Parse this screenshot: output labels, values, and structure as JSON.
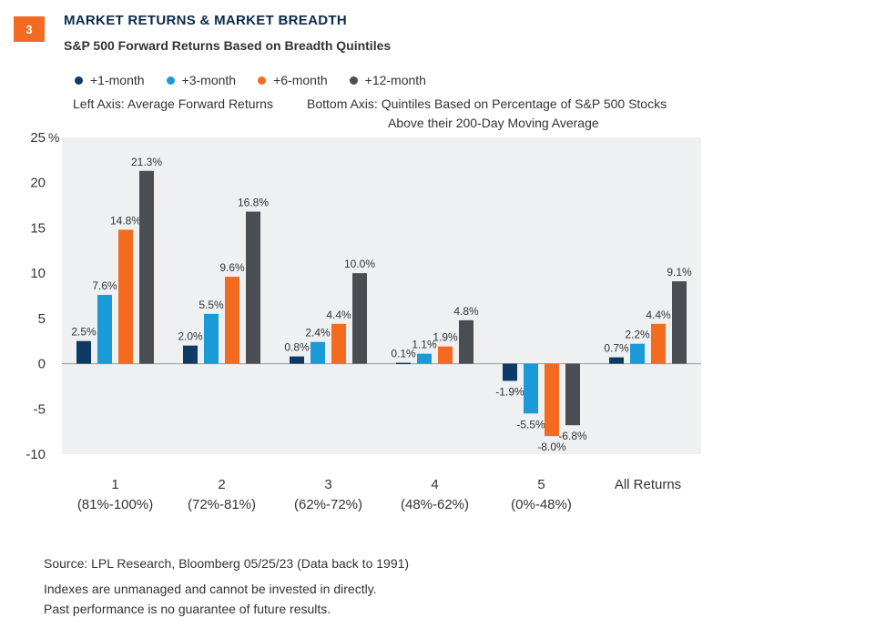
{
  "header": {
    "badge": "3",
    "title": "MARKET RETURNS & MARKET BREADTH",
    "subtitle": "S&P 500 Forward Returns Based on Breadth Quintiles"
  },
  "notes": {
    "left_axis": "Left Axis: Average Forward Returns",
    "bottom_axis_line1": "Bottom Axis: Quintiles Based on Percentage of S&P 500 Stocks",
    "bottom_axis_line2": "Above their 200-Day Moving Average"
  },
  "footer": {
    "source": "Source: LPL Research, Bloomberg  05/25/23 (Data back to 1991)",
    "disclaimer1": "Indexes are unmanaged and cannot be invested in directly.",
    "disclaimer2": "Past performance is no guarantee of future results."
  },
  "colors": {
    "plot_background": "#eff0f1",
    "badge": "#f26b21",
    "title": "#0b2a4a"
  },
  "chart_data": {
    "type": "bar",
    "categories": [
      "1",
      "2",
      "3",
      "4",
      "5",
      "All Returns"
    ],
    "category_sublabels": [
      "(81%-100%)",
      "(72%-81%)",
      "(62%-72%)",
      "(48%-62%)",
      "(0%-48%)",
      ""
    ],
    "series": [
      {
        "name": "+1-month",
        "color": "#0d3b66",
        "values": [
          2.5,
          2.0,
          0.8,
          0.1,
          -1.9,
          0.7
        ]
      },
      {
        "name": "+3-month",
        "color": "#1a9bd7",
        "values": [
          7.6,
          5.5,
          2.4,
          1.1,
          -5.5,
          2.2
        ]
      },
      {
        "name": "+6-month",
        "color": "#f26b21",
        "values": [
          14.8,
          9.6,
          4.4,
          1.9,
          -8.0,
          4.4
        ]
      },
      {
        "name": "+12-month",
        "color": "#4a4d52",
        "values": [
          21.3,
          16.8,
          10.0,
          4.8,
          -6.8,
          9.1
        ]
      }
    ],
    "ylim": [
      -10,
      25
    ],
    "yticks": [
      "25",
      "20",
      "15",
      "10",
      "5",
      "0",
      "-5",
      "-10"
    ],
    "ytick_values": [
      25,
      20,
      15,
      10,
      5,
      0,
      -5,
      -10
    ],
    "yunit": "%",
    "grid": false,
    "legend_position": "top-left"
  }
}
